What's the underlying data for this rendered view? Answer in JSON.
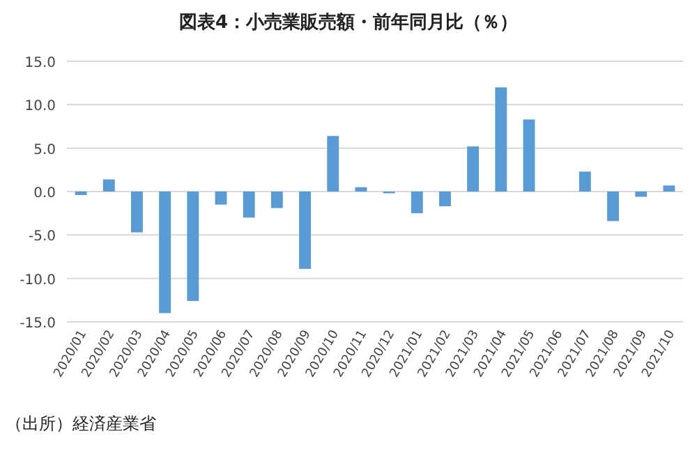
{
  "chart_data": {
    "type": "bar",
    "title": "図表4：小売業販売額・前年同月比（％）",
    "categories": [
      "2020/01",
      "2020/02",
      "2020/03",
      "2020/04",
      "2020/05",
      "2020/06",
      "2020/07",
      "2020/08",
      "2020/09",
      "2020/10",
      "2020/11",
      "2020/12",
      "2021/01",
      "2021/02",
      "2021/03",
      "2021/04",
      "2021/05",
      "2021/06",
      "2021/07",
      "2021/08",
      "2021/09",
      "2021/10"
    ],
    "values": [
      -0.4,
      1.4,
      -4.7,
      -14.0,
      -12.6,
      -1.5,
      -3.0,
      -1.9,
      -8.9,
      6.4,
      0.5,
      -0.2,
      -2.5,
      -1.7,
      5.2,
      12.0,
      8.3,
      0,
      2.3,
      -3.4,
      -0.6,
      0.7
    ],
    "color": "#5b9bd5",
    "ylim": [
      -15,
      15
    ],
    "yticks": [
      {
        "value": -15,
        "label": "-15.0"
      },
      {
        "value": -10,
        "label": "-10.0"
      },
      {
        "value": -5,
        "label": "-5.0"
      },
      {
        "value": 0,
        "label": "0.0"
      },
      {
        "value": 5,
        "label": "5.0"
      },
      {
        "value": 10,
        "label": "10.0"
      },
      {
        "value": 15,
        "label": "15.0"
      }
    ],
    "grid": "y",
    "annotations": [
      "（出所）経済産業省"
    ]
  }
}
